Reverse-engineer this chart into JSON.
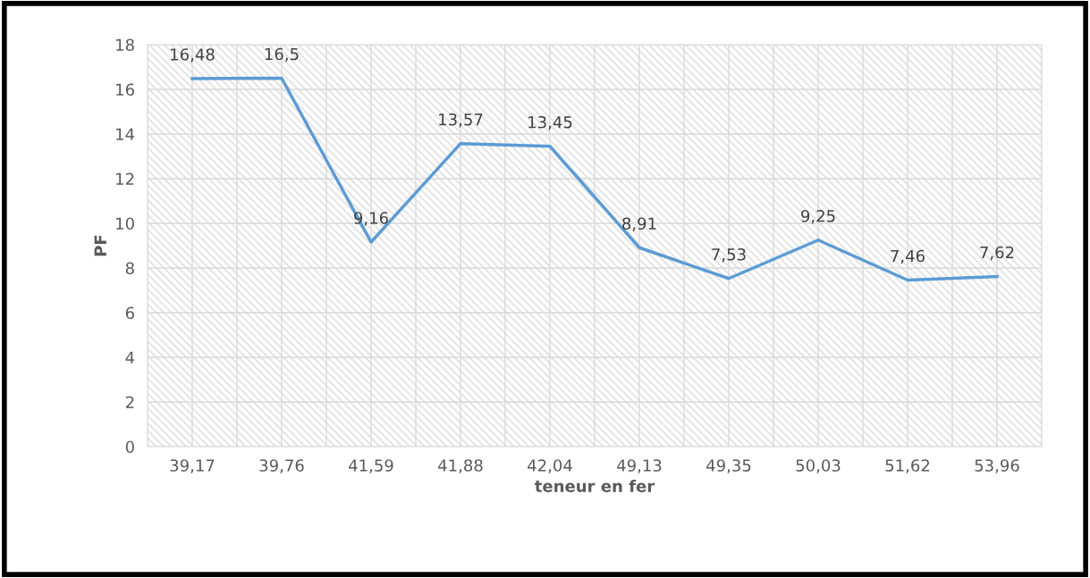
{
  "chart_data": {
    "type": "line",
    "xlabel": "teneur en fer",
    "ylabel": "PF",
    "categories": [
      "39,17",
      "39,76",
      "41,59",
      "41,88",
      "42,04",
      "49,13",
      "49,35",
      "50,03",
      "51,62",
      "53,96"
    ],
    "series": [
      {
        "color": "#5b9bd5",
        "values": [
          16.48,
          16.5,
          9.16,
          13.57,
          13.45,
          8.91,
          7.53,
          9.25,
          7.46,
          7.62
        ],
        "value_labels": [
          "16,48",
          "16,5",
          "9,16",
          "13,57",
          "13,45",
          "8,91",
          "7,53",
          "9,25",
          "7,46",
          "7,62"
        ]
      }
    ],
    "ylim": [
      0,
      18
    ],
    "yticks": [
      0,
      2,
      4,
      6,
      8,
      10,
      12,
      14,
      16,
      18
    ],
    "grid": true,
    "marker": "none",
    "line_style": "solid"
  }
}
